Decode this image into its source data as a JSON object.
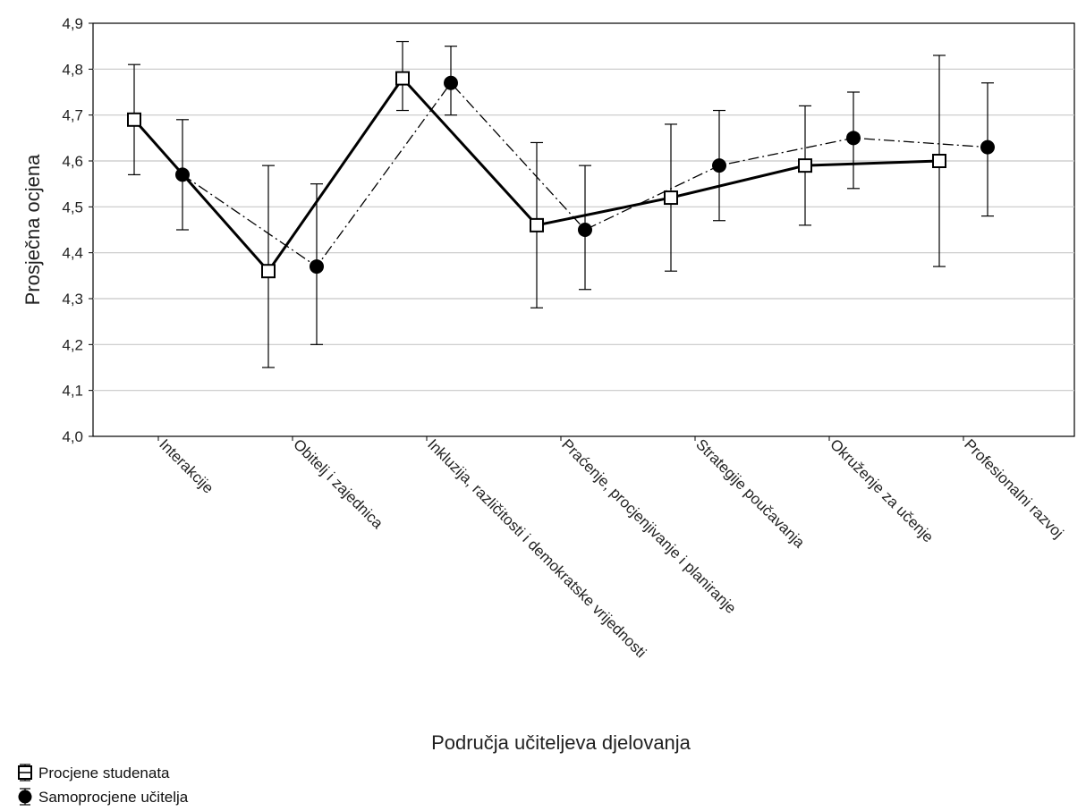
{
  "chart_data": {
    "type": "line",
    "title": "",
    "xlabel": "Područja učiteljeva djelovanja",
    "ylabel": "Prosječna ocjena",
    "ylim": [
      4.0,
      4.9
    ],
    "yticks": [
      "4,0",
      "4,1",
      "4,2",
      "4,3",
      "4,4",
      "4,5",
      "4,6",
      "4,7",
      "4,8",
      "4,9"
    ],
    "grid": true,
    "legend_position": "bottom-left",
    "categories": [
      "Interakcije",
      "Obitelj i zajednica",
      "Inkluzija, različitosti i demokratske vrijednosti",
      "Praćenje, procjenjivanje i planiranje",
      "Strategije poučavanja",
      "Okruženje za učenje",
      "Profesionalni razvoj"
    ],
    "series": [
      {
        "name": "Procjene studenata",
        "marker": "open-square",
        "line": "solid",
        "color": "#000000",
        "values": [
          4.69,
          4.36,
          4.78,
          4.46,
          4.52,
          4.59,
          4.6
        ],
        "lower": [
          4.57,
          4.15,
          4.71,
          4.28,
          4.36,
          4.46,
          4.37
        ],
        "upper": [
          4.81,
          4.59,
          4.86,
          4.64,
          4.68,
          4.72,
          4.83
        ]
      },
      {
        "name": "Samoprocjene učitelja",
        "marker": "filled-circle",
        "line": "dash-dot",
        "color": "#000000",
        "values": [
          4.57,
          4.37,
          4.77,
          4.45,
          4.59,
          4.65,
          4.63
        ],
        "lower": [
          4.45,
          4.2,
          4.7,
          4.32,
          4.47,
          4.54,
          4.48
        ],
        "upper": [
          4.69,
          4.55,
          4.85,
          4.59,
          4.71,
          4.75,
          4.77
        ]
      }
    ]
  }
}
